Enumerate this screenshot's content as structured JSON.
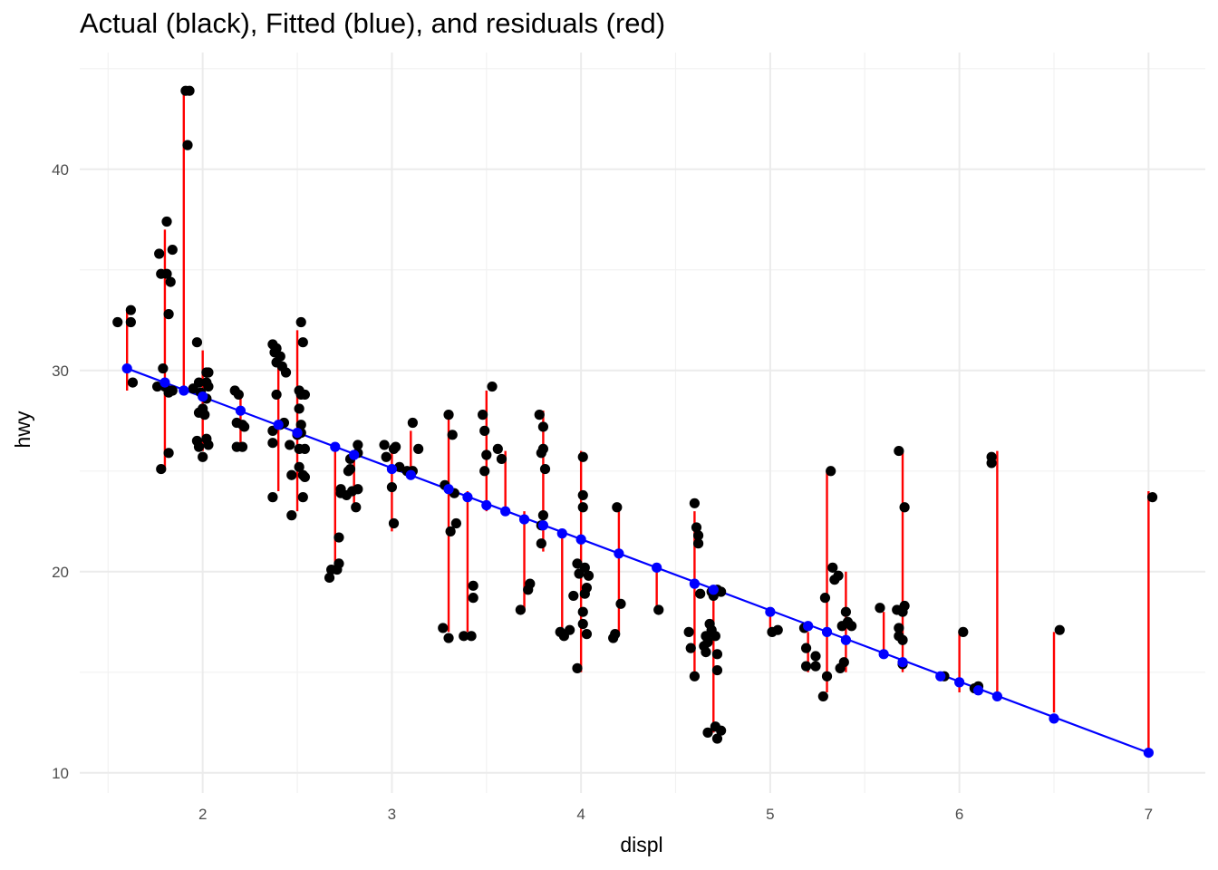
{
  "chart_data": {
    "type": "scatter",
    "title": "Actual (black), Fitted (blue), and residuals (red)",
    "xlabel": "displ",
    "ylabel": "hwy",
    "xlim": [
      1.35,
      7.3
    ],
    "ylim": [
      9.0,
      45.8
    ],
    "x_ticks": [
      2,
      3,
      4,
      5,
      6,
      7
    ],
    "y_ticks": [
      10,
      20,
      30,
      40
    ],
    "grid": true,
    "legend": "none",
    "colors": {
      "actual": "#000000",
      "fitted": "#0000ff",
      "residual": "#ff0000",
      "grid_major": "#ebebeb",
      "grid_minor": "#f2f2f2"
    },
    "fitted_line": {
      "x": [
        1.6,
        7.0
      ],
      "y": [
        30.1,
        11.0
      ]
    },
    "fitted": [
      [
        1.6,
        30.1
      ],
      [
        1.8,
        29.4
      ],
      [
        1.9,
        29.0
      ],
      [
        2.0,
        28.7
      ],
      [
        2.2,
        28.0
      ],
      [
        2.4,
        27.3
      ],
      [
        2.5,
        26.9
      ],
      [
        2.7,
        26.2
      ],
      [
        2.8,
        25.8
      ],
      [
        3.0,
        25.1
      ],
      [
        3.1,
        24.8
      ],
      [
        3.3,
        24.1
      ],
      [
        3.4,
        23.7
      ],
      [
        3.5,
        23.3
      ],
      [
        3.6,
        23.0
      ],
      [
        3.7,
        22.6
      ],
      [
        3.8,
        22.3
      ],
      [
        3.9,
        21.9
      ],
      [
        4.0,
        21.6
      ],
      [
        4.2,
        20.9
      ],
      [
        4.4,
        20.2
      ],
      [
        4.6,
        19.4
      ],
      [
        4.7,
        19.1
      ],
      [
        5.0,
        18.0
      ],
      [
        5.2,
        17.3
      ],
      [
        5.3,
        17.0
      ],
      [
        5.4,
        16.6
      ],
      [
        5.6,
        15.9
      ],
      [
        5.7,
        15.5
      ],
      [
        5.9,
        14.8
      ],
      [
        6.0,
        14.5
      ],
      [
        6.1,
        14.1
      ],
      [
        6.2,
        13.8
      ],
      [
        6.5,
        12.7
      ],
      [
        7.0,
        11.0
      ]
    ],
    "residual_ranges": [
      {
        "x": 1.6,
        "min": 29,
        "max": 33
      },
      {
        "x": 1.8,
        "min": 25,
        "max": 37
      },
      {
        "x": 1.9,
        "min": 29,
        "max": 44
      },
      {
        "x": 2.0,
        "min": 26,
        "max": 31
      },
      {
        "x": 2.2,
        "min": 26,
        "max": 29
      },
      {
        "x": 2.4,
        "min": 24,
        "max": 31
      },
      {
        "x": 2.5,
        "min": 23,
        "max": 32
      },
      {
        "x": 2.7,
        "min": 20,
        "max": 26
      },
      {
        "x": 2.8,
        "min": 23,
        "max": 26
      },
      {
        "x": 3.0,
        "min": 22,
        "max": 26
      },
      {
        "x": 3.1,
        "min": 25,
        "max": 27
      },
      {
        "x": 3.3,
        "min": 17,
        "max": 28
      },
      {
        "x": 3.4,
        "min": 17,
        "max": 24
      },
      {
        "x": 3.5,
        "min": 23,
        "max": 29
      },
      {
        "x": 3.6,
        "min": 23,
        "max": 26
      },
      {
        "x": 3.7,
        "min": 18,
        "max": 23
      },
      {
        "x": 3.8,
        "min": 21,
        "max": 28
      },
      {
        "x": 3.9,
        "min": 17,
        "max": 22
      },
      {
        "x": 4.0,
        "min": 15,
        "max": 26
      },
      {
        "x": 4.2,
        "min": 17,
        "max": 23
      },
      {
        "x": 4.4,
        "min": 18,
        "max": 20
      },
      {
        "x": 4.6,
        "min": 15,
        "max": 23
      },
      {
        "x": 4.7,
        "min": 12,
        "max": 19
      },
      {
        "x": 5.0,
        "min": 17,
        "max": 18
      },
      {
        "x": 5.2,
        "min": 15,
        "max": 17
      },
      {
        "x": 5.3,
        "min": 14,
        "max": 25
      },
      {
        "x": 5.4,
        "min": 15,
        "max": 20
      },
      {
        "x": 5.6,
        "min": 16,
        "max": 18
      },
      {
        "x": 5.7,
        "min": 15,
        "max": 26
      },
      {
        "x": 6.0,
        "min": 14,
        "max": 17
      },
      {
        "x": 6.2,
        "min": 14,
        "max": 26
      },
      {
        "x": 6.5,
        "min": 13,
        "max": 17
      },
      {
        "x": 7.0,
        "min": 11,
        "max": 24
      }
    ],
    "actual": [
      [
        1.55,
        32.4
      ],
      [
        1.62,
        33.0
      ],
      [
        1.62,
        32.4
      ],
      [
        1.63,
        29.4
      ],
      [
        1.77,
        35.8
      ],
      [
        1.78,
        34.8
      ],
      [
        1.81,
        34.8
      ],
      [
        1.83,
        34.4
      ],
      [
        1.84,
        36.0
      ],
      [
        1.81,
        37.4
      ],
      [
        1.79,
        30.1
      ],
      [
        1.76,
        29.2
      ],
      [
        1.82,
        28.9
      ],
      [
        1.8,
        29.2
      ],
      [
        1.78,
        25.1
      ],
      [
        1.82,
        25.9
      ],
      [
        1.82,
        32.8
      ],
      [
        1.84,
        29.0
      ],
      [
        1.91,
        43.9
      ],
      [
        1.93,
        43.9
      ],
      [
        1.92,
        41.2
      ],
      [
        1.97,
        31.4
      ],
      [
        1.95,
        29.1
      ],
      [
        1.98,
        29.4
      ],
      [
        2.02,
        29.4
      ],
      [
        1.99,
        28.9
      ],
      [
        2.02,
        28.6
      ],
      [
        2.03,
        29.9
      ],
      [
        2.03,
        29.2
      ],
      [
        1.98,
        27.9
      ],
      [
        2.01,
        27.8
      ],
      [
        2.0,
        28.1
      ],
      [
        1.97,
        26.5
      ],
      [
        2.02,
        26.6
      ],
      [
        2.03,
        26.3
      ],
      [
        1.98,
        26.2
      ],
      [
        2.0,
        25.7
      ],
      [
        2.02,
        29.9
      ],
      [
        2.17,
        29.0
      ],
      [
        2.19,
        28.8
      ],
      [
        2.18,
        27.4
      ],
      [
        2.21,
        27.3
      ],
      [
        2.18,
        26.2
      ],
      [
        2.21,
        26.2
      ],
      [
        2.22,
        27.2
      ],
      [
        2.37,
        31.3
      ],
      [
        2.39,
        31.1
      ],
      [
        2.38,
        30.9
      ],
      [
        2.41,
        30.7
      ],
      [
        2.39,
        30.4
      ],
      [
        2.42,
        30.2
      ],
      [
        2.44,
        29.9
      ],
      [
        2.39,
        28.8
      ],
      [
        2.41,
        27.3
      ],
      [
        2.43,
        27.4
      ],
      [
        2.37,
        27.0
      ],
      [
        2.37,
        26.4
      ],
      [
        2.37,
        23.7
      ],
      [
        2.46,
        26.3
      ],
      [
        2.47,
        24.8
      ],
      [
        2.47,
        22.8
      ],
      [
        2.51,
        29.0
      ],
      [
        2.52,
        28.8
      ],
      [
        2.54,
        28.8
      ],
      [
        2.51,
        28.1
      ],
      [
        2.52,
        27.3
      ],
      [
        2.52,
        26.9
      ],
      [
        2.5,
        26.8
      ],
      [
        2.51,
        26.1
      ],
      [
        2.54,
        26.1
      ],
      [
        2.51,
        25.2
      ],
      [
        2.53,
        24.8
      ],
      [
        2.54,
        24.7
      ],
      [
        2.53,
        23.7
      ],
      [
        2.52,
        32.4
      ],
      [
        2.53,
        31.4
      ],
      [
        2.67,
        19.7
      ],
      [
        2.68,
        20.1
      ],
      [
        2.71,
        20.1
      ],
      [
        2.72,
        20.4
      ],
      [
        2.72,
        21.7
      ],
      [
        2.73,
        23.9
      ],
      [
        2.76,
        23.8
      ],
      [
        2.79,
        24.0
      ],
      [
        2.73,
        24.1
      ],
      [
        2.77,
        25.0
      ],
      [
        2.78,
        25.6
      ],
      [
        2.82,
        25.9
      ],
      [
        2.82,
        26.3
      ],
      [
        2.81,
        23.2
      ],
      [
        2.82,
        24.1
      ],
      [
        2.78,
        25.1
      ],
      [
        2.96,
        26.3
      ],
      [
        2.97,
        25.7
      ],
      [
        3.01,
        26.1
      ],
      [
        3.02,
        26.2
      ],
      [
        3.04,
        25.2
      ],
      [
        3.08,
        25.0
      ],
      [
        3.0,
        24.2
      ],
      [
        3.01,
        22.4
      ],
      [
        3.11,
        27.4
      ],
      [
        3.11,
        25.0
      ],
      [
        3.14,
        26.1
      ],
      [
        3.27,
        17.2
      ],
      [
        3.3,
        16.7
      ],
      [
        3.3,
        27.8
      ],
      [
        3.32,
        26.8
      ],
      [
        3.31,
        22.0
      ],
      [
        3.34,
        22.4
      ],
      [
        3.33,
        23.9
      ],
      [
        3.28,
        24.3
      ],
      [
        3.38,
        16.8
      ],
      [
        3.42,
        16.8
      ],
      [
        3.43,
        19.3
      ],
      [
        3.43,
        18.7
      ],
      [
        3.48,
        27.8
      ],
      [
        3.49,
        27.0
      ],
      [
        3.5,
        25.8
      ],
      [
        3.49,
        25.0
      ],
      [
        3.53,
        29.2
      ],
      [
        3.56,
        26.1
      ],
      [
        3.58,
        25.6
      ],
      [
        3.68,
        18.1
      ],
      [
        3.72,
        19.1
      ],
      [
        3.73,
        19.4
      ],
      [
        3.78,
        27.8
      ],
      [
        3.8,
        27.2
      ],
      [
        3.8,
        26.1
      ],
      [
        3.79,
        25.9
      ],
      [
        3.81,
        25.1
      ],
      [
        3.8,
        22.8
      ],
      [
        3.79,
        22.3
      ],
      [
        3.79,
        21.4
      ],
      [
        3.89,
        17.0
      ],
      [
        3.91,
        16.8
      ],
      [
        3.94,
        17.1
      ],
      [
        3.96,
        18.8
      ],
      [
        3.98,
        15.2
      ],
      [
        4.01,
        17.4
      ],
      [
        4.01,
        18.0
      ],
      [
        3.99,
        19.9
      ],
      [
        3.98,
        20.4
      ],
      [
        4.02,
        20.2
      ],
      [
        4.03,
        19.2
      ],
      [
        4.04,
        19.8
      ],
      [
        4.01,
        23.8
      ],
      [
        4.01,
        23.2
      ],
      [
        4.01,
        25.7
      ],
      [
        4.03,
        16.9
      ],
      [
        4.02,
        18.9
      ],
      [
        4.17,
        16.7
      ],
      [
        4.18,
        16.9
      ],
      [
        4.19,
        23.2
      ],
      [
        4.21,
        18.4
      ],
      [
        4.41,
        18.1
      ],
      [
        4.57,
        17.0
      ],
      [
        4.58,
        16.2
      ],
      [
        4.6,
        23.4
      ],
      [
        4.61,
        22.2
      ],
      [
        4.62,
        21.8
      ],
      [
        4.62,
        21.4
      ],
      [
        4.63,
        18.9
      ],
      [
        4.6,
        14.8
      ],
      [
        4.65,
        16.3
      ],
      [
        4.67,
        16.5
      ],
      [
        4.68,
        17.4
      ],
      [
        4.66,
        16.8
      ],
      [
        4.66,
        16.0
      ],
      [
        4.69,
        17.1
      ],
      [
        4.71,
        16.8
      ],
      [
        4.72,
        15.9
      ],
      [
        4.72,
        15.1
      ],
      [
        4.7,
        18.9
      ],
      [
        4.74,
        19.0
      ],
      [
        4.72,
        19.1
      ],
      [
        4.67,
        12.0
      ],
      [
        4.71,
        12.3
      ],
      [
        4.72,
        11.7
      ],
      [
        4.74,
        12.1
      ],
      [
        4.7,
        18.8
      ],
      [
        4.69,
        19.0
      ],
      [
        5.01,
        17.0
      ],
      [
        5.04,
        17.1
      ],
      [
        5.18,
        17.2
      ],
      [
        5.19,
        16.2
      ],
      [
        5.19,
        15.3
      ],
      [
        5.24,
        15.3
      ],
      [
        5.24,
        15.8
      ],
      [
        5.28,
        13.8
      ],
      [
        5.3,
        14.8
      ],
      [
        5.29,
        18.7
      ],
      [
        5.32,
        25.0
      ],
      [
        5.33,
        20.2
      ],
      [
        5.34,
        19.6
      ],
      [
        5.36,
        19.8
      ],
      [
        5.37,
        15.2
      ],
      [
        5.38,
        17.3
      ],
      [
        5.4,
        18.0
      ],
      [
        5.41,
        17.5
      ],
      [
        5.39,
        15.5
      ],
      [
        5.43,
        17.3
      ],
      [
        5.58,
        18.2
      ],
      [
        5.67,
        18.1
      ],
      [
        5.68,
        17.2
      ],
      [
        5.68,
        16.8
      ],
      [
        5.68,
        26.0
      ],
      [
        5.71,
        23.2
      ],
      [
        5.71,
        18.3
      ],
      [
        5.7,
        18.0
      ],
      [
        5.7,
        15.4
      ],
      [
        5.7,
        16.6
      ],
      [
        5.92,
        14.8
      ],
      [
        6.02,
        17.0
      ],
      [
        6.08,
        14.2
      ],
      [
        6.1,
        14.3
      ],
      [
        6.17,
        25.7
      ],
      [
        6.17,
        25.4
      ],
      [
        6.53,
        17.1
      ],
      [
        7.02,
        23.7
      ]
    ]
  }
}
